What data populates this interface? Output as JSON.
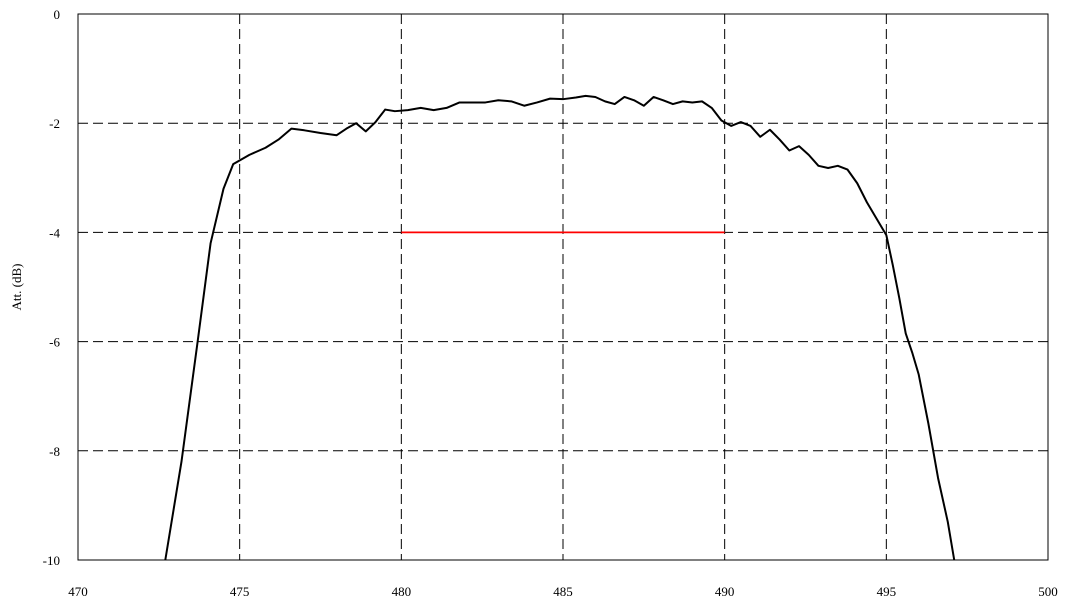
{
  "chart_data": {
    "type": "line",
    "title": "",
    "xlabel": "",
    "ylabel": "Att. (dB)",
    "xlim": [
      470,
      500
    ],
    "ylim": [
      -10,
      0
    ],
    "xticks": [
      "470",
      "475",
      "480",
      "485",
      "490",
      "495",
      "500"
    ],
    "yticks": [
      "0",
      "-2",
      "-4",
      "-6",
      "-8",
      "-10"
    ],
    "grid": "dashed",
    "legend": "none",
    "series": [
      {
        "color": "#000000",
        "x": [
          472.7,
          473.2,
          473.7,
          474.1,
          474.5,
          474.8,
          475.3,
          475.8,
          476.2,
          476.6,
          477.0,
          477.5,
          478.0,
          478.3,
          478.6,
          478.9,
          479.2,
          479.5,
          479.8,
          480.2,
          480.6,
          481.0,
          481.4,
          481.8,
          482.2,
          482.6,
          483.0,
          483.4,
          483.8,
          484.2,
          484.6,
          485.0,
          485.4,
          485.7,
          486.0,
          486.3,
          486.6,
          486.9,
          487.2,
          487.5,
          487.8,
          488.1,
          488.4,
          488.7,
          489.0,
          489.3,
          489.6,
          489.9,
          490.2,
          490.5,
          490.8,
          491.1,
          491.4,
          491.7,
          492.0,
          492.3,
          492.6,
          492.9,
          493.2,
          493.5,
          493.8,
          494.1,
          494.4,
          494.7,
          495.0,
          495.2,
          495.4,
          495.6,
          495.8,
          496.0,
          496.3,
          496.6,
          496.9,
          497.1
        ],
        "y": [
          -10.0,
          -8.2,
          -6.0,
          -4.2,
          -3.2,
          -2.75,
          -2.58,
          -2.45,
          -2.3,
          -2.1,
          -2.13,
          -2.18,
          -2.22,
          -2.1,
          -2.0,
          -2.15,
          -1.98,
          -1.75,
          -1.78,
          -1.76,
          -1.72,
          -1.76,
          -1.72,
          -1.62,
          -1.62,
          -1.62,
          -1.58,
          -1.6,
          -1.68,
          -1.62,
          -1.55,
          -1.56,
          -1.53,
          -1.5,
          -1.52,
          -1.6,
          -1.65,
          -1.52,
          -1.58,
          -1.68,
          -1.52,
          -1.58,
          -1.65,
          -1.6,
          -1.62,
          -1.6,
          -1.72,
          -1.95,
          -2.05,
          -1.98,
          -2.05,
          -2.25,
          -2.12,
          -2.3,
          -2.5,
          -2.42,
          -2.58,
          -2.78,
          -2.82,
          -2.78,
          -2.85,
          -3.1,
          -3.45,
          -3.75,
          -4.05,
          -4.6,
          -5.2,
          -5.85,
          -6.2,
          -6.6,
          -7.5,
          -8.5,
          -9.3,
          -10.0
        ]
      },
      {
        "color": "#ff0000",
        "x": [
          480,
          490
        ],
        "y": [
          -4,
          -4
        ]
      }
    ]
  }
}
